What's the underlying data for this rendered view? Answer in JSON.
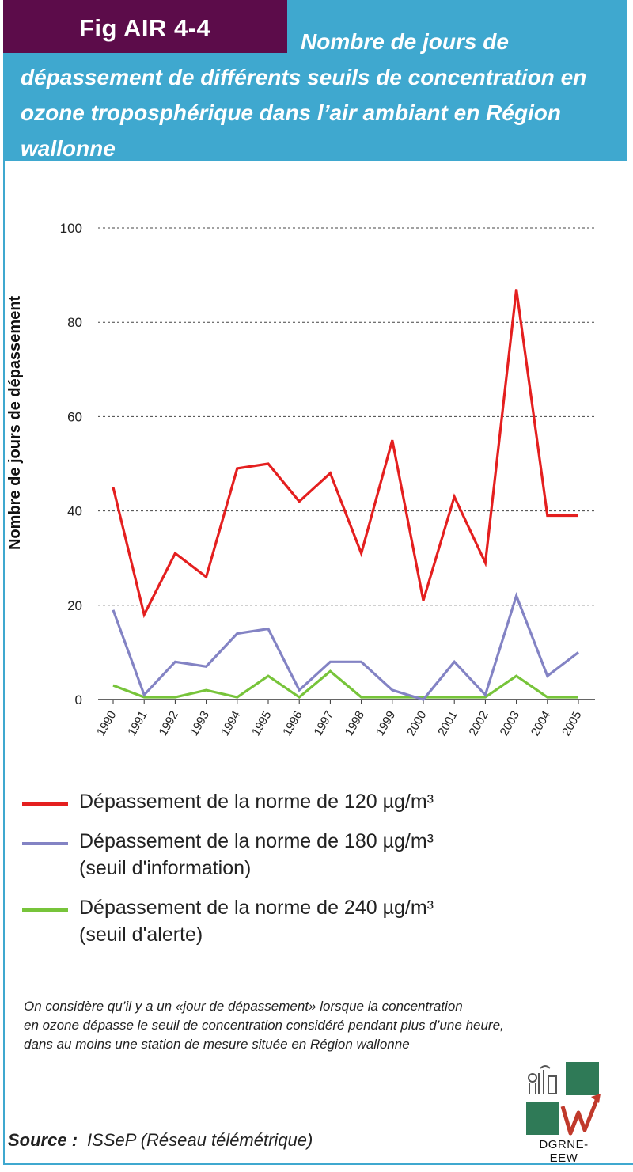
{
  "header": {
    "fig_label": "Fig AIR 4-4",
    "title": "Nombre de jours de dépassement de différents seuils de concentration en ozone troposphérique dans l’air ambiant en Région wallonne"
  },
  "chart_data": {
    "type": "line",
    "title": "",
    "xlabel": "",
    "ylabel": "Nombre de jours de dépassement",
    "ylim": [
      0,
      100
    ],
    "yticks": [
      0,
      20,
      40,
      60,
      80,
      100
    ],
    "grid": "horizontal dashed",
    "legend_position": "bottom",
    "categories": [
      "1990",
      "1991",
      "1992",
      "1993",
      "1994",
      "1995",
      "1996",
      "1997",
      "1998",
      "1999",
      "2000",
      "2001",
      "2002",
      "2003",
      "2004",
      "2005"
    ],
    "series": [
      {
        "name": "Dépassement de la norme de 120 µg/m³",
        "color": "#e41f1f",
        "values": [
          45,
          18,
          31,
          26,
          49,
          50,
          42,
          48,
          31,
          55,
          21,
          43,
          29,
          87,
          39,
          39
        ]
      },
      {
        "name": "Dépassement de la norme de 180 µg/m³\n(seuil d'information)",
        "color": "#8383c4",
        "values": [
          19,
          1,
          8,
          7,
          14,
          15,
          2,
          8,
          8,
          2,
          0,
          8,
          1,
          22,
          5,
          10
        ]
      },
      {
        "name": "Dépassement de la norme de 240 µg/m³\n(seuil d'alerte)",
        "color": "#77c43a",
        "values": [
          3,
          0.5,
          0.5,
          2,
          0.5,
          5,
          0.5,
          6,
          0.5,
          0.5,
          0.5,
          0.5,
          0.5,
          5,
          0.5,
          0.5
        ]
      }
    ]
  },
  "note": "On considère qu’il y a un «jour de dépassement» lorsque la concentration\nen ozone dépasse le seuil de concentration considéré pendant plus d’une heure,\ndans au moins une station de  mesure située en Région wallonne",
  "source": {
    "label": "Source :",
    "text": "ISSeP (Réseau télémétrique)"
  },
  "logo": {
    "text": "DGRNE-EEW",
    "color": "#2f7a57",
    "accent": "#c0392b"
  }
}
